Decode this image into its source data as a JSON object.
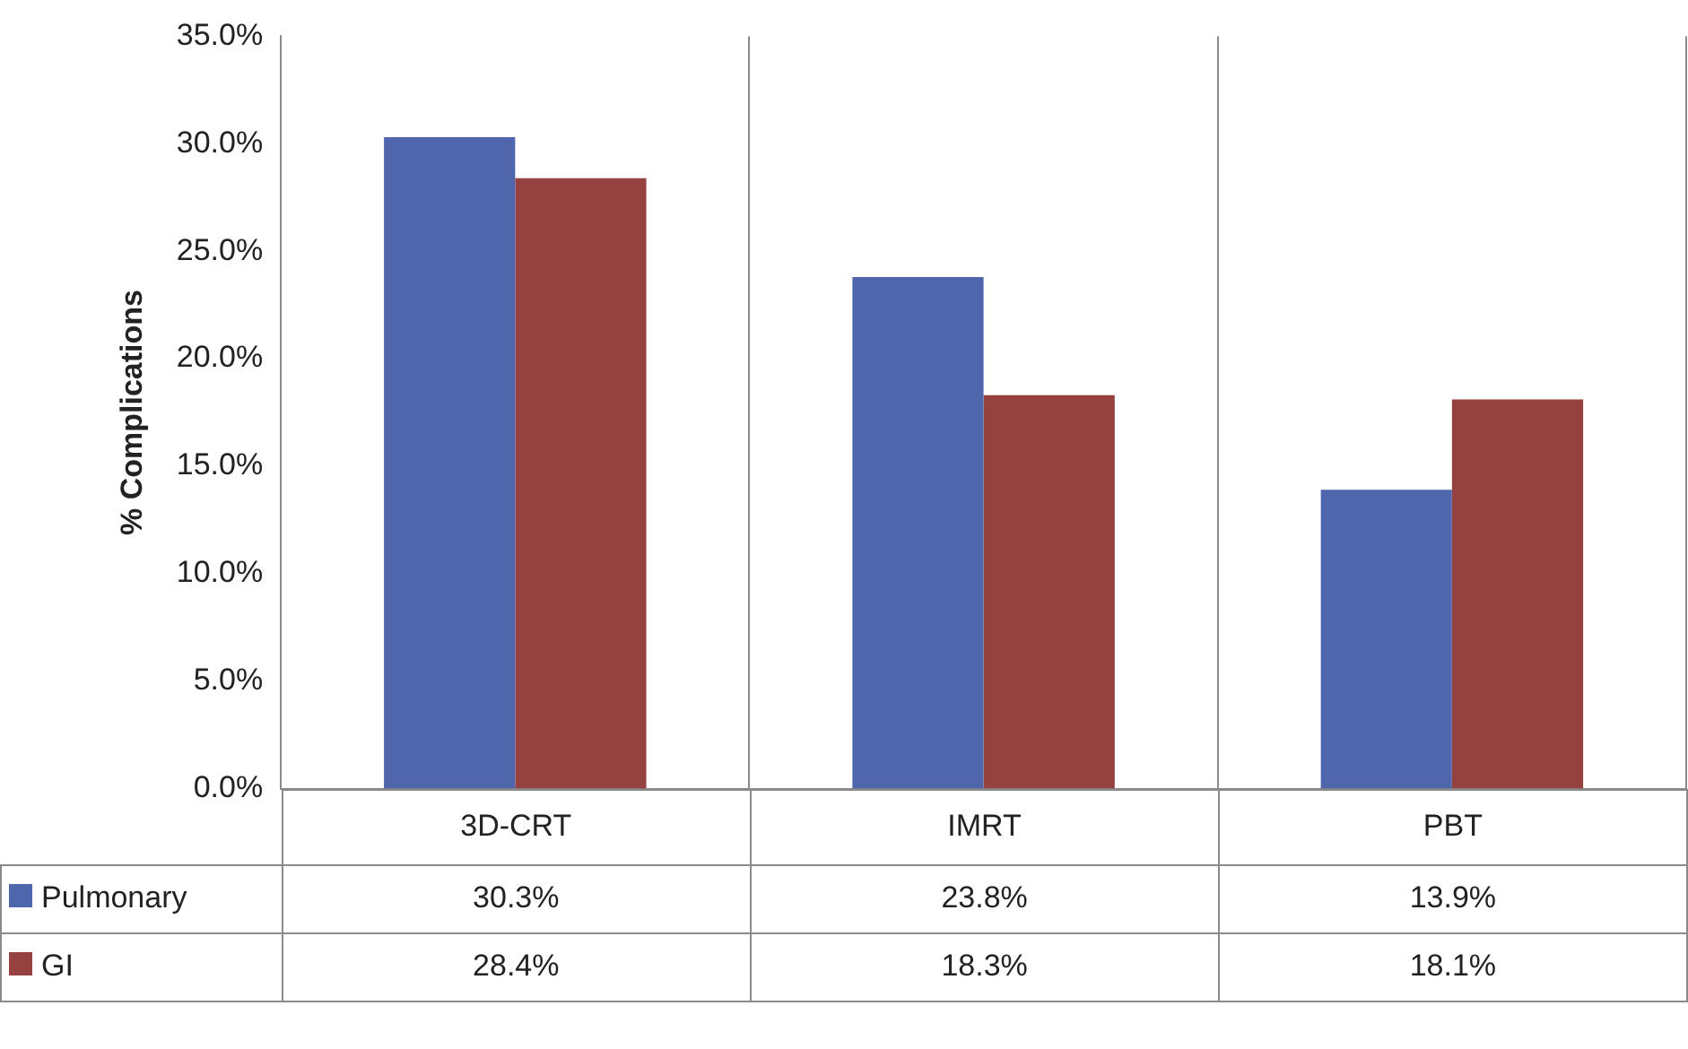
{
  "chart_data": {
    "type": "bar",
    "ylabel": "% Complications",
    "categories": [
      "3D-CRT",
      "IMRT",
      "PBT"
    ],
    "series": [
      {
        "name": "Pulmonary",
        "color": "#5066ac",
        "values": [
          30.3,
          23.8,
          13.9
        ],
        "value_labels": [
          "30.3%",
          "23.8%",
          "13.9%"
        ]
      },
      {
        "name": "GI",
        "color": "#944140",
        "values": [
          28.4,
          18.3,
          18.1
        ],
        "value_labels": [
          "28.4%",
          "18.3%",
          "18.1%"
        ]
      }
    ],
    "ylim": [
      0,
      35
    ],
    "yticks": [
      {
        "value": 0,
        "label": "0.0%"
      },
      {
        "value": 5,
        "label": "5.0%"
      },
      {
        "value": 10,
        "label": "10.0%"
      },
      {
        "value": 15,
        "label": "15.0%"
      },
      {
        "value": 20,
        "label": "20.0%"
      },
      {
        "value": 25,
        "label": "25.0%"
      },
      {
        "value": 30,
        "label": "30.0%"
      },
      {
        "value": 35,
        "label": "35.0%"
      }
    ],
    "grid": "x",
    "legend": "bottom"
  }
}
